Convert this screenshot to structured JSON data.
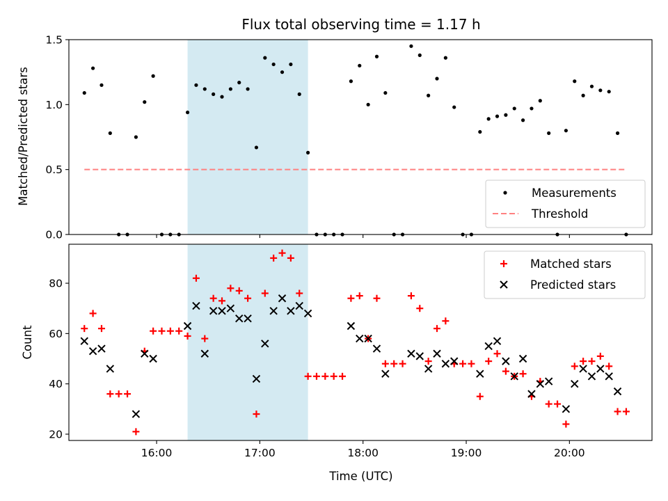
{
  "chart_data": [
    {
      "type": "scatter",
      "title": "Flux total observing time = 1.17 h",
      "ylabel": "Matched/Predicted stars",
      "xlim": [
        "15:09",
        "20:48"
      ],
      "ylim": [
        0,
        1.5
      ],
      "yticks": [
        "0.0",
        "0.5",
        "1.0",
        "1.5"
      ],
      "xticks": [
        "16:00",
        "17:00",
        "18:00",
        "19:00",
        "20:00"
      ],
      "shaded_interval": [
        "16:18",
        "17:28"
      ],
      "shade_color": "#add8e6",
      "legend_position": "lower right",
      "series": [
        {
          "name": "Measurements",
          "marker": "dot",
          "color": "#000000",
          "x": [
            "15:18",
            "15:23",
            "15:28",
            "15:33",
            "15:38",
            "15:43",
            "15:48",
            "15:53",
            "15:58",
            "16:03",
            "16:08",
            "16:13",
            "16:18",
            "16:23",
            "16:28",
            "16:33",
            "16:38",
            "16:43",
            "16:48",
            "16:53",
            "16:58",
            "17:03",
            "17:08",
            "17:13",
            "17:18",
            "17:23",
            "17:28",
            "17:33",
            "17:38",
            "17:43",
            "17:48",
            "17:53",
            "17:58",
            "18:03",
            "18:08",
            "18:13",
            "18:18",
            "18:23",
            "18:28",
            "18:33",
            "18:38",
            "18:43",
            "18:48",
            "18:53",
            "18:58",
            "19:03",
            "19:08",
            "19:13",
            "19:18",
            "19:23",
            "19:28",
            "19:33",
            "19:38",
            "19:43",
            "19:48",
            "19:53",
            "19:58",
            "20:03",
            "20:08",
            "20:13",
            "20:18",
            "20:23",
            "20:28",
            "20:33"
          ],
          "y": [
            1.09,
            1.28,
            1.15,
            0.78,
            0.0,
            0.0,
            0.75,
            1.02,
            1.22,
            0.0,
            0.0,
            0.0,
            0.94,
            1.15,
            1.12,
            1.08,
            1.06,
            1.12,
            1.17,
            1.12,
            0.67,
            1.36,
            1.31,
            1.25,
            1.31,
            1.08,
            0.63,
            0.0,
            0.0,
            0.0,
            0.0,
            1.18,
            1.3,
            1.0,
            1.37,
            1.09,
            0.0,
            0.0,
            1.45,
            1.38,
            1.07,
            1.2,
            1.36,
            0.98,
            0.0,
            0.0,
            0.79,
            0.89,
            0.91,
            0.92,
            0.97,
            0.88,
            0.97,
            1.03,
            0.78,
            0.0,
            0.8,
            1.18,
            1.07,
            1.14,
            1.11,
            1.1,
            0.78,
            0.0
          ]
        },
        {
          "name": "Threshold",
          "marker": "dashed-line",
          "color": "#ff8080",
          "x": [
            "15:18",
            "20:33"
          ],
          "y": [
            0.5,
            0.5
          ]
        }
      ]
    },
    {
      "type": "scatter",
      "xlabel": "Time (UTC)",
      "ylabel": "Count",
      "xlim": [
        "15:09",
        "20:48"
      ],
      "ylim": [
        17.5,
        95.5
      ],
      "yticks": [
        "20",
        "40",
        "60",
        "80"
      ],
      "xticks": [
        "16:00",
        "17:00",
        "18:00",
        "19:00",
        "20:00"
      ],
      "shaded_interval": [
        "16:18",
        "17:28"
      ],
      "shade_color": "#add8e6",
      "legend_position": "upper right",
      "series": [
        {
          "name": "Matched stars",
          "marker": "plus",
          "color": "#ff0000",
          "x": [
            "15:18",
            "15:23",
            "15:28",
            "15:33",
            "15:38",
            "15:43",
            "15:48",
            "15:53",
            "15:58",
            "16:03",
            "16:08",
            "16:13",
            "16:18",
            "16:23",
            "16:28",
            "16:33",
            "16:38",
            "16:43",
            "16:48",
            "16:53",
            "16:58",
            "17:03",
            "17:08",
            "17:13",
            "17:18",
            "17:23",
            "17:28",
            "17:33",
            "17:38",
            "17:43",
            "17:48",
            "17:53",
            "17:58",
            "18:03",
            "18:08",
            "18:13",
            "18:18",
            "18:23",
            "18:28",
            "18:33",
            "18:38",
            "18:43",
            "18:48",
            "18:53",
            "18:58",
            "19:03",
            "19:08",
            "19:13",
            "19:18",
            "19:23",
            "19:28",
            "19:33",
            "19:38",
            "19:43",
            "19:48",
            "19:53",
            "19:58",
            "20:03",
            "20:08",
            "20:13",
            "20:18",
            "20:23",
            "20:28",
            "20:33"
          ],
          "y": [
            62,
            68,
            62,
            36,
            36,
            36,
            21,
            53,
            61,
            61,
            61,
            61,
            59,
            82,
            58,
            74,
            73,
            78,
            77,
            74,
            28,
            76,
            90,
            92,
            90,
            76,
            43,
            43,
            43,
            43,
            43,
            74,
            75,
            58,
            74,
            48,
            48,
            48,
            75,
            70,
            49,
            62,
            65,
            48,
            48,
            48,
            35,
            49,
            52,
            45,
            43,
            44,
            35,
            41,
            32,
            32,
            24,
            47,
            49,
            49,
            51,
            47,
            29,
            29
          ]
        },
        {
          "name": "Predicted stars",
          "marker": "x",
          "color": "#000000",
          "x": [
            "15:18",
            "15:23",
            "15:28",
            "15:33",
            "15:48",
            "15:53",
            "15:58",
            "16:18",
            "16:23",
            "16:28",
            "16:33",
            "16:38",
            "16:43",
            "16:48",
            "16:53",
            "16:58",
            "17:03",
            "17:08",
            "17:13",
            "17:18",
            "17:23",
            "17:28",
            "17:53",
            "17:58",
            "18:03",
            "18:08",
            "18:13",
            "18:28",
            "18:33",
            "18:38",
            "18:43",
            "18:48",
            "18:53",
            "19:08",
            "19:13",
            "19:18",
            "19:23",
            "19:28",
            "19:33",
            "19:38",
            "19:43",
            "19:48",
            "19:58",
            "20:03",
            "20:08",
            "20:13",
            "20:18",
            "20:23",
            "20:28"
          ],
          "y": [
            57,
            53,
            54,
            46,
            28,
            52,
            50,
            63,
            71,
            52,
            69,
            69,
            70,
            66,
            66,
            42,
            56,
            69,
            74,
            69,
            71,
            68,
            63,
            58,
            58,
            54,
            44,
            52,
            51,
            46,
            52,
            48,
            49,
            44,
            55,
            57,
            49,
            43,
            50,
            36,
            40,
            41,
            30,
            40,
            46,
            43,
            46,
            43,
            37
          ]
        }
      ]
    }
  ]
}
